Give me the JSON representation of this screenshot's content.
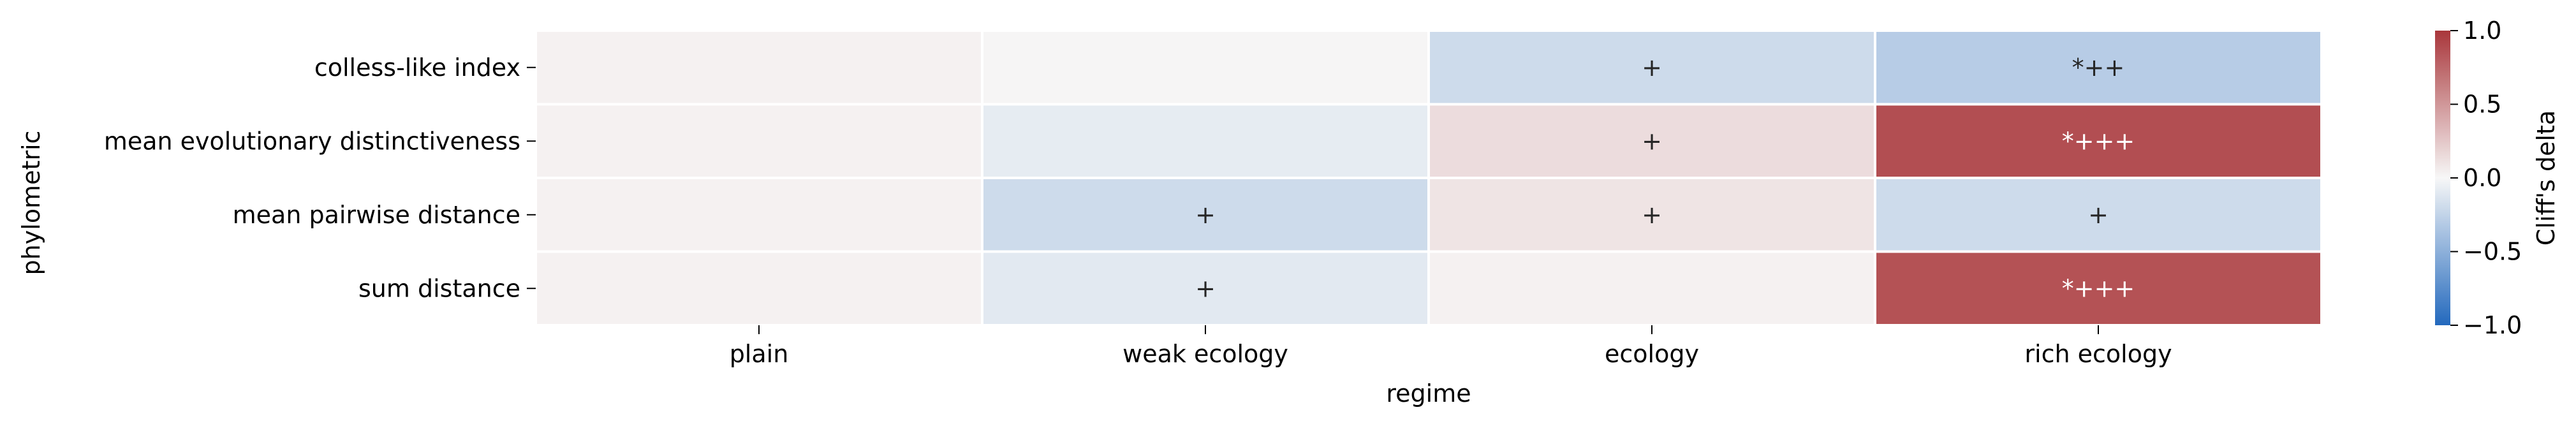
{
  "chart_data": {
    "type": "heatmap",
    "xlabel": "regime",
    "ylabel": "phylometric",
    "x_categories": [
      "plain",
      "weak ecology",
      "ecology",
      "rich ecology"
    ],
    "y_categories": [
      "colless-like index",
      "mean evolutionary distinctiveness",
      "mean pairwise distance",
      "sum distance"
    ],
    "values": [
      [
        0.03,
        0.01,
        -0.2,
        -0.3
      ],
      [
        0.03,
        -0.08,
        0.14,
        0.88
      ],
      [
        0.03,
        -0.2,
        0.1,
        -0.2
      ],
      [
        0.03,
        -0.1,
        0.03,
        0.86
      ]
    ],
    "cell_labels": [
      [
        "",
        "",
        "+",
        "*++"
      ],
      [
        "",
        "",
        "+",
        "*+++"
      ],
      [
        "",
        "+",
        "+",
        "+"
      ],
      [
        "",
        "+",
        "",
        "*+++"
      ]
    ],
    "colorbar": {
      "label": "Cliff's delta",
      "range": [
        -1.0,
        1.0
      ],
      "ticks": [
        1.0,
        0.5,
        0.0,
        -0.5,
        -1.0
      ],
      "tick_labels": [
        "1.0",
        "0.5",
        "0.0",
        "−0.5",
        "−1.0"
      ],
      "colormap": "vlag",
      "color_low": "#2369bd",
      "color_mid": "#f7f7f7",
      "color_high": "#a9373b"
    },
    "grid": false,
    "legend": "colorbar-right"
  }
}
